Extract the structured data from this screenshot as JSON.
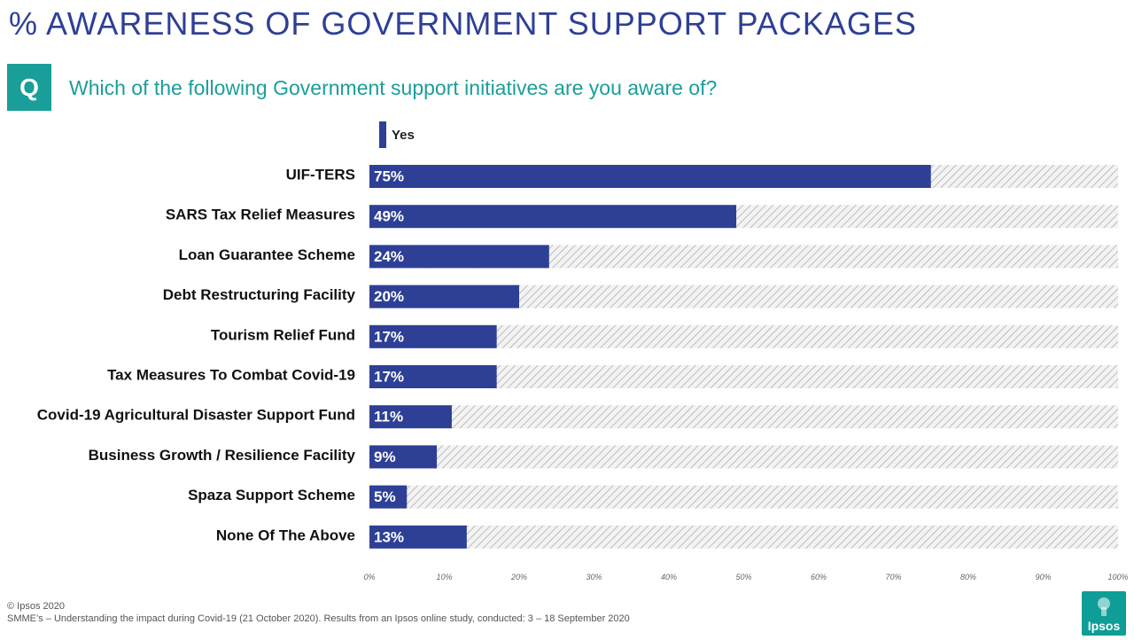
{
  "page": {
    "title": "% AWARENESS OF GOVERNMENT SUPPORT PACKAGES",
    "q_badge": "Q",
    "question": "Which of the following Government support initiatives are you aware of?",
    "copyright": "© Ipsos 2020",
    "source": "SMME’s – Understanding the impact during Covid-19 (21 October 2020). Results from an Ipsos online study, conducted: 3 – 18 September 2020",
    "logo_text": "Ipsos"
  },
  "colors": {
    "bar": "#2E3F96",
    "title": "#2E3F96",
    "accent": "#1A9E9A",
    "hatch": "#BDBDBD"
  },
  "chart_data": {
    "type": "bar",
    "orientation": "horizontal",
    "title": "% AWARENESS OF GOVERNMENT SUPPORT PACKAGES",
    "legend": [
      "Yes"
    ],
    "legend_position": "top",
    "categories": [
      "UIF-TERS",
      "SARS Tax Relief Measures",
      "Loan Guarantee Scheme",
      "Debt Restructuring Facility",
      "Tourism Relief Fund",
      "Tax Measures To Combat Covid-19",
      "Covid-19 Agricultural Disaster Support Fund",
      "Business Growth / Resilience Facility",
      "Spaza Support Scheme",
      "None Of The Above"
    ],
    "series": [
      {
        "name": "Yes",
        "values": [
          75,
          49,
          24,
          20,
          17,
          17,
          11,
          9,
          5,
          13
        ]
      }
    ],
    "data_labels": [
      "75%",
      "49%",
      "24%",
      "20%",
      "17%",
      "17%",
      "11%",
      "9%",
      "5%",
      "13%"
    ],
    "xlim": [
      0,
      100
    ],
    "xticks": [
      "0%",
      "10%",
      "20%",
      "30%",
      "40%",
      "50%",
      "60%",
      "70%",
      "80%",
      "90%",
      "100%"
    ],
    "xlabel": "",
    "ylabel": "",
    "grid": false
  }
}
